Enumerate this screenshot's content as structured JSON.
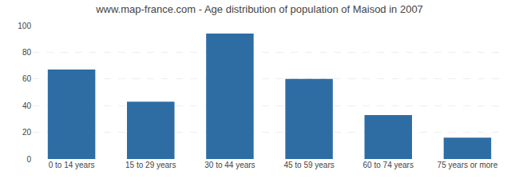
{
  "chart_data": {
    "type": "bar",
    "title": "www.map-france.com - Age distribution of population of Maisod in 2007",
    "categories": [
      "0 to 14 years",
      "15 to 29 years",
      "30 to 44 years",
      "45 to 59 years",
      "60 to 74 years",
      "75 years or more"
    ],
    "values": [
      67,
      43,
      94,
      60,
      33,
      16
    ],
    "color": "#2e6da4",
    "ylim": [
      0,
      100
    ],
    "yticks": [
      0,
      20,
      40,
      60,
      80,
      100
    ],
    "grid": true
  }
}
